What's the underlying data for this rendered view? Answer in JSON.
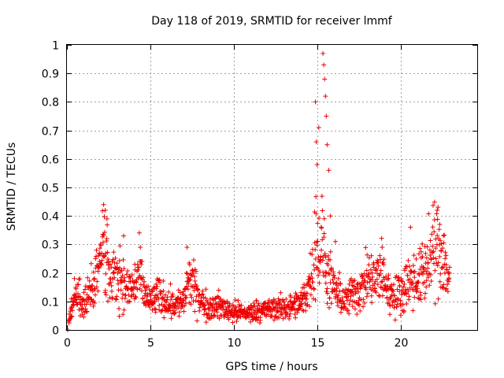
{
  "chart_data": {
    "type": "scatter",
    "title": "Day 118 of 2019, SRMTID for receiver lmmf",
    "xlabel": "GPS time / hours",
    "ylabel": "SRMTID / TECUs",
    "xlim": [
      0,
      24.6
    ],
    "ylim": [
      0,
      1
    ],
    "xticks": [
      0,
      5,
      10,
      15,
      20
    ],
    "xtick_labels": [
      "0",
      "5",
      "10",
      "15",
      "20"
    ],
    "yticks": [
      0,
      0.1,
      0.2,
      0.3,
      0.4,
      0.5,
      0.6,
      0.7,
      0.8,
      0.9,
      1
    ],
    "ytick_labels": [
      "0",
      "0.1",
      "0.2",
      "0.3",
      "0.4",
      "0.5",
      "0.6",
      "0.7",
      "0.8",
      "0.9",
      "1"
    ],
    "grid": true,
    "marker": "+",
    "marker_color": "#ee0000",
    "profile": [
      [
        0.05,
        0.0
      ],
      [
        0.3,
        0.1
      ],
      [
        0.6,
        0.13
      ],
      [
        0.9,
        0.09
      ],
      [
        1.2,
        0.11
      ],
      [
        1.5,
        0.14
      ],
      [
        1.8,
        0.2
      ],
      [
        2.0,
        0.27
      ],
      [
        2.2,
        0.33
      ],
      [
        2.5,
        0.2
      ],
      [
        2.8,
        0.17
      ],
      [
        3.2,
        0.2
      ],
      [
        3.5,
        0.14
      ],
      [
        4.0,
        0.15
      ],
      [
        4.3,
        0.2
      ],
      [
        4.6,
        0.13
      ],
      [
        5.0,
        0.1
      ],
      [
        5.5,
        0.12
      ],
      [
        6.0,
        0.1
      ],
      [
        6.5,
        0.09
      ],
      [
        7.0,
        0.1
      ],
      [
        7.3,
        0.17
      ],
      [
        7.6,
        0.15
      ],
      [
        8.0,
        0.1
      ],
      [
        8.5,
        0.08
      ],
      [
        9.0,
        0.085
      ],
      [
        9.5,
        0.075
      ],
      [
        10.0,
        0.065
      ],
      [
        10.5,
        0.06
      ],
      [
        11.0,
        0.06
      ],
      [
        11.5,
        0.07
      ],
      [
        12.0,
        0.07
      ],
      [
        12.5,
        0.075
      ],
      [
        13.0,
        0.08
      ],
      [
        13.5,
        0.08
      ],
      [
        14.0,
        0.09
      ],
      [
        14.3,
        0.12
      ],
      [
        14.7,
        0.2
      ],
      [
        14.95,
        0.35
      ],
      [
        15.15,
        0.25
      ],
      [
        15.3,
        0.3
      ],
      [
        15.6,
        0.2
      ],
      [
        15.9,
        0.15
      ],
      [
        16.3,
        0.12
      ],
      [
        16.8,
        0.1
      ],
      [
        17.2,
        0.14
      ],
      [
        17.6,
        0.13
      ],
      [
        18.0,
        0.18
      ],
      [
        18.5,
        0.17
      ],
      [
        18.9,
        0.2
      ],
      [
        19.3,
        0.13
      ],
      [
        19.8,
        0.12
      ],
      [
        20.2,
        0.15
      ],
      [
        20.6,
        0.18
      ],
      [
        21.0,
        0.17
      ],
      [
        21.5,
        0.22
      ],
      [
        22.0,
        0.27
      ],
      [
        22.3,
        0.3
      ],
      [
        22.6,
        0.25
      ],
      [
        22.9,
        0.18
      ]
    ],
    "peaks": [
      [
        2.2,
        0.44
      ],
      [
        2.3,
        0.42
      ],
      [
        2.4,
        0.39
      ],
      [
        3.4,
        0.33
      ],
      [
        4.4,
        0.29
      ],
      [
        7.2,
        0.29
      ],
      [
        14.9,
        0.8
      ],
      [
        14.95,
        0.66
      ],
      [
        15.0,
        0.58
      ],
      [
        15.1,
        0.71
      ],
      [
        15.35,
        0.97
      ],
      [
        15.4,
        0.93
      ],
      [
        15.45,
        0.88
      ],
      [
        15.5,
        0.82
      ],
      [
        15.55,
        0.75
      ],
      [
        15.6,
        0.65
      ],
      [
        15.7,
        0.56
      ],
      [
        15.8,
        0.4
      ],
      [
        16.1,
        0.31
      ],
      [
        18.9,
        0.29
      ],
      [
        20.6,
        0.36
      ],
      [
        22.2,
        0.42
      ],
      [
        22.35,
        0.37
      ]
    ],
    "point_count": 1400,
    "x_end": 22.95
  }
}
